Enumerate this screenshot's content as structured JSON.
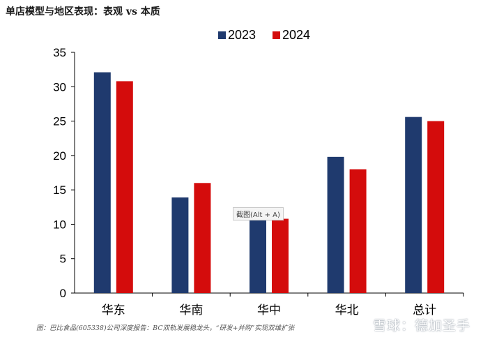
{
  "title": "单店模型与地区表现：表观 vs 本质",
  "source": "图：巴比食品(605338)公司深度报告：BC双轨发展稳龙头，“研发+并购”实现双维扩张",
  "watermark": "雪球：德加圣手",
  "tooltip": "截图(Alt + A)",
  "colors": {
    "2023": "#1f3a6e",
    "2024": "#d40c0c"
  },
  "chart_data": {
    "type": "bar",
    "categories": [
      "华东",
      "华南",
      "华中",
      "华北",
      "总计"
    ],
    "series": [
      {
        "name": "2023",
        "values": [
          32.1,
          13.9,
          10.6,
          19.8,
          25.6
        ]
      },
      {
        "name": "2024",
        "values": [
          30.8,
          16.0,
          10.8,
          18.0,
          25.0
        ]
      }
    ],
    "ylim": [
      0,
      35
    ],
    "yticks": [
      0,
      5,
      10,
      15,
      20,
      25,
      30,
      35
    ],
    "legend": "top-center",
    "grid": false
  }
}
